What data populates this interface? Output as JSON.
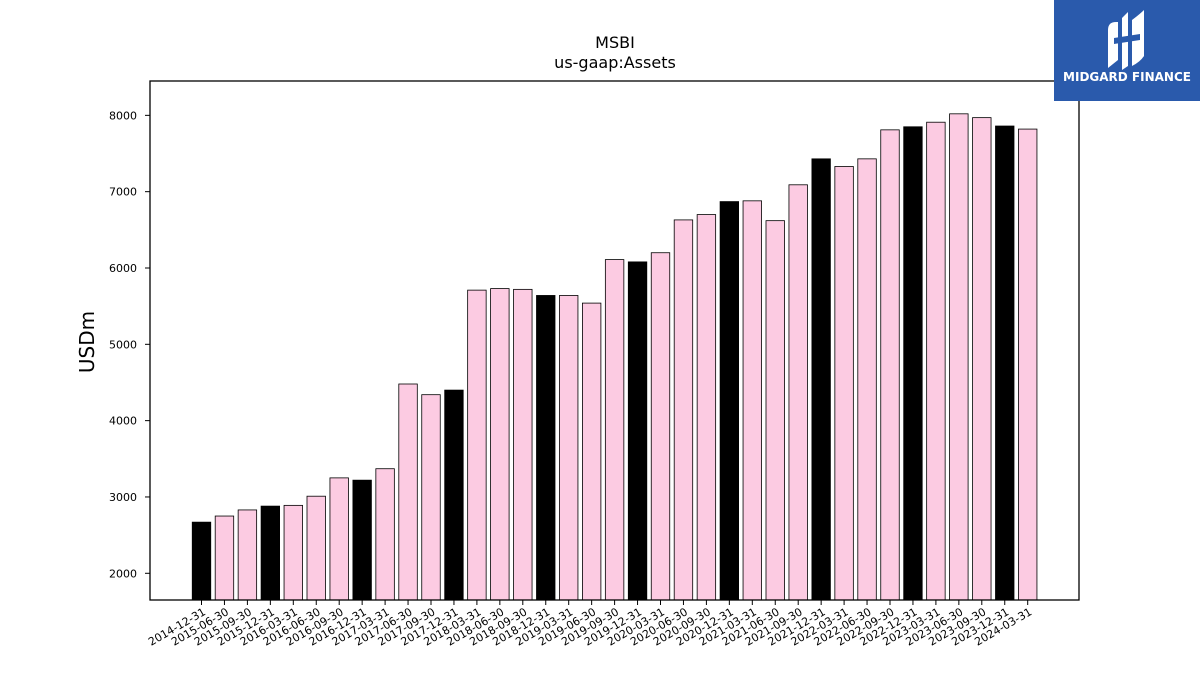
{
  "chart_data": {
    "type": "bar",
    "title": "MSBI",
    "subtitle": "us-gaap:Assets",
    "xlabel": "",
    "ylabel": "USDm",
    "ylim": [
      1650,
      8450
    ],
    "yticks": [
      2000,
      3000,
      4000,
      5000,
      6000,
      7000,
      8000
    ],
    "grid": false,
    "colors": {
      "regular": "#fccbe2",
      "year_end": "#000000",
      "edge": "#000000"
    },
    "categories": [
      "2014-12-31",
      "2015-06-30",
      "2015-09-30",
      "2015-12-31",
      "2016-03-31",
      "2016-06-30",
      "2016-09-30",
      "2016-12-31",
      "2017-03-31",
      "2017-06-30",
      "2017-09-30",
      "2017-12-31",
      "2018-03-31",
      "2018-06-30",
      "2018-09-30",
      "2018-12-31",
      "2019-03-31",
      "2019-06-30",
      "2019-09-30",
      "2019-12-31",
      "2020-03-31",
      "2020-06-30",
      "2020-09-30",
      "2020-12-31",
      "2021-03-31",
      "2021-06-30",
      "2021-09-30",
      "2021-12-31",
      "2022-03-31",
      "2022-06-30",
      "2022-09-30",
      "2022-12-31",
      "2023-03-31",
      "2023-06-30",
      "2023-09-30",
      "2023-12-31",
      "2024-03-31"
    ],
    "values": [
      2670,
      2750,
      2830,
      2880,
      2890,
      3010,
      3250,
      3220,
      3370,
      4480,
      4340,
      4400,
      5710,
      5730,
      5720,
      5640,
      5640,
      5540,
      6110,
      6080,
      6200,
      6630,
      6700,
      6870,
      6880,
      6620,
      7090,
      7430,
      7330,
      7430,
      7810,
      7850,
      7910,
      8020,
      7970,
      7860,
      7820
    ],
    "year_end": [
      true,
      false,
      false,
      true,
      false,
      false,
      false,
      true,
      false,
      false,
      false,
      true,
      false,
      false,
      false,
      true,
      false,
      false,
      false,
      true,
      false,
      false,
      false,
      true,
      false,
      false,
      false,
      true,
      false,
      false,
      false,
      true,
      false,
      false,
      false,
      true,
      false
    ]
  },
  "logo": {
    "text": "MIDGARD FINANCE",
    "icon": "midgard-logo-icon"
  }
}
